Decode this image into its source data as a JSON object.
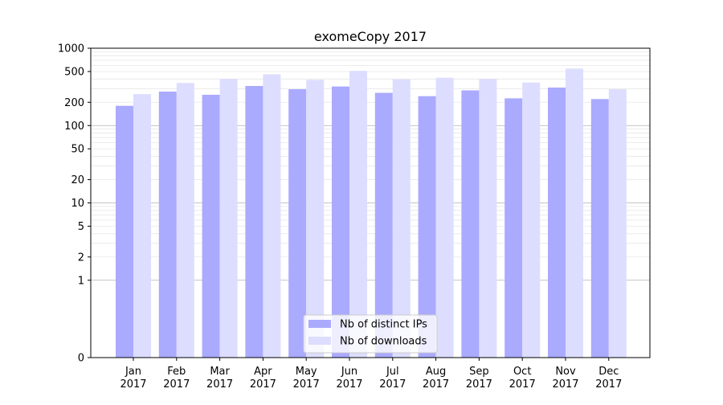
{
  "chart_data": {
    "type": "bar",
    "title": "exomeCopy 2017",
    "xlabel": "",
    "ylabel": "",
    "yscale": "symlog",
    "ylim": [
      0,
      1000
    ],
    "yticks": [
      0,
      1,
      2,
      5,
      10,
      20,
      50,
      100,
      200,
      500,
      1000
    ],
    "grid": "horizontal",
    "legend_position": "bottom-center",
    "categories": [
      [
        "Jan",
        "2017"
      ],
      [
        "Feb",
        "2017"
      ],
      [
        "Mar",
        "2017"
      ],
      [
        "Apr",
        "2017"
      ],
      [
        "May",
        "2017"
      ],
      [
        "Jun",
        "2017"
      ],
      [
        "Jul",
        "2017"
      ],
      [
        "Aug",
        "2017"
      ],
      [
        "Sep",
        "2017"
      ],
      [
        "Oct",
        "2017"
      ],
      [
        "Nov",
        "2017"
      ],
      [
        "Dec",
        "2017"
      ]
    ],
    "series": [
      {
        "name": "Nb of distinct IPs",
        "color": "#aaaaff",
        "values": [
          180,
          275,
          250,
          325,
          295,
          320,
          265,
          240,
          285,
          225,
          310,
          220
        ]
      },
      {
        "name": "Nb of downloads",
        "color": "#ddddff",
        "values": [
          255,
          355,
          400,
          460,
          390,
          510,
          395,
          415,
          400,
          360,
          545,
          295
        ]
      }
    ]
  }
}
